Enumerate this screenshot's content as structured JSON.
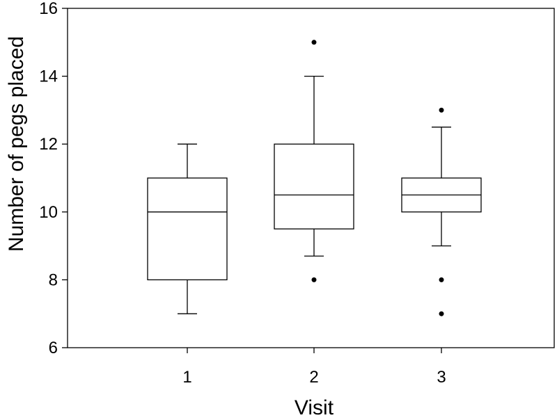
{
  "chart_data": {
    "type": "box",
    "xlabel": "Visit",
    "ylabel": "Number of pegs placed",
    "ylim": [
      6,
      16
    ],
    "yticks": [
      6,
      8,
      10,
      12,
      14,
      16
    ],
    "grid": false,
    "categories": [
      "1",
      "2",
      "3"
    ],
    "boxes": [
      {
        "category": "1",
        "whisker_low": 7,
        "q1": 8,
        "median": 10,
        "q3": 11,
        "whisker_high": 12,
        "outliers": []
      },
      {
        "category": "2",
        "whisker_low": 8.7,
        "q1": 9.5,
        "median": 10.5,
        "q3": 12,
        "whisker_high": 14,
        "outliers": [
          8,
          15
        ]
      },
      {
        "category": "3",
        "whisker_low": 9,
        "q1": 10,
        "median": 10.5,
        "q3": 11,
        "whisker_high": 12.5,
        "outliers": [
          7,
          8,
          13
        ]
      }
    ]
  }
}
